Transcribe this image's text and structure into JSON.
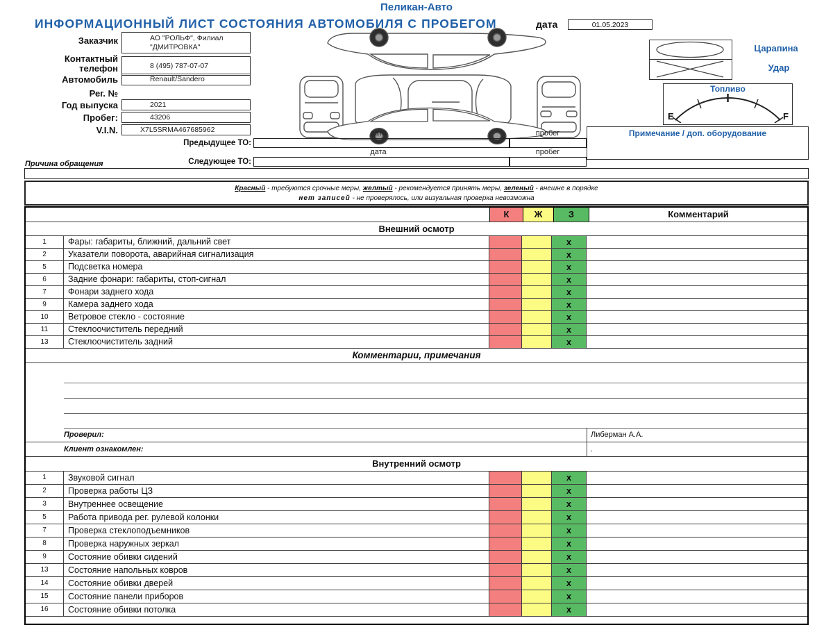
{
  "colors": {
    "accent_blue": "#2060A8",
    "cell_red": "#F47F7F",
    "cell_yellow": "#FCFC84",
    "cell_green": "#58BB64"
  },
  "header": {
    "company": "Пеликан-Авто",
    "title": "ИНФОРМАЦИОННЫЙ ЛИСТ СОСТОЯНИЯ АВТОМОБИЛЯ С ПРОБЕГОМ",
    "date_label": "дата",
    "date_value": "01.05.2023"
  },
  "form": {
    "fields": [
      {
        "label": "Заказчик",
        "value": "АО \"РОЛЬФ\", Филиал \"ДМИТРОВКА\""
      },
      {
        "label": "Контактный телефон",
        "value": "8 (495) 787-07-07"
      },
      {
        "label": "Автомобиль",
        "value": "Renault/Sandero"
      },
      {
        "label": "Рег. №",
        "value": ""
      },
      {
        "label": "Год выпуска",
        "value": "2021"
      },
      {
        "label": "Пробег:",
        "value": "43206"
      },
      {
        "label": "V.I.N.",
        "value": "X7L5SRMA467685962"
      }
    ]
  },
  "service": {
    "rows": [
      {
        "label": "Предыдущее ТО:",
        "date_label": "дата",
        "mileage_label": "пробег",
        "date_value": "",
        "mileage_value": ""
      },
      {
        "label": "Следующее ТО:",
        "date_label": "дата",
        "mileage_label": "пробег",
        "date_value": "",
        "mileage_value": ""
      }
    ]
  },
  "damage": {
    "scratch_label": "Царапина",
    "impact_label": "Удар"
  },
  "fuel": {
    "title": "Топливо",
    "empty": "E",
    "full": "F"
  },
  "notes_title": "Примечание / доп. оборудование",
  "reason_label": "Причина обращения",
  "legend": {
    "line1": [
      {
        "term": "Красный",
        "desc": " - требуются срочные меры,  "
      },
      {
        "term": "желтый",
        "desc": " - рекомендуется принять меры,  "
      },
      {
        "term": "зеленый",
        "desc": " - внешне в порядке"
      }
    ],
    "line2_term": "нет записей",
    "line2_desc": " - не проверялось, или визуальная проверка невозможна"
  },
  "inspection": {
    "header": {
      "red": "К",
      "yellow": "Ж",
      "green": "З",
      "comment": "Комментарий"
    },
    "sections": [
      {
        "title": "Внешний осмотр",
        "rows": [
          {
            "num": "1",
            "item": "Фары: габариты, ближний, дальний свет",
            "mark": "x",
            "comment": ""
          },
          {
            "num": "2",
            "item": "Указатели поворота, аварийная сигнализация",
            "mark": "x",
            "comment": ""
          },
          {
            "num": "5",
            "item": "Подсветка номера",
            "mark": "x",
            "comment": ""
          },
          {
            "num": "6",
            "item": "Задние фонари: габариты, стоп-сигнал",
            "mark": "x",
            "comment": ""
          },
          {
            "num": "7",
            "item": "Фонари заднего хода",
            "mark": "x",
            "comment": ""
          },
          {
            "num": "9",
            "item": "Камера заднего хода",
            "mark": "x",
            "comment": ""
          },
          {
            "num": "10",
            "item": "Ветровое стекло - состояние",
            "mark": "x",
            "comment": ""
          },
          {
            "num": "11",
            "item": "Стеклоочиститель передний",
            "mark": "x",
            "comment": ""
          },
          {
            "num": "13",
            "item": "Стеклоочиститель задний",
            "mark": "x",
            "comment": ""
          }
        ]
      },
      {
        "title": "Внутренний осмотр",
        "rows": [
          {
            "num": "1",
            "item": "Звуковой сигнал",
            "mark": "x",
            "comment": ""
          },
          {
            "num": "2",
            "item": "Проверка работы ЦЗ",
            "mark": "x",
            "comment": ""
          },
          {
            "num": "3",
            "item": "Внутреннее освещение",
            "mark": "x",
            "comment": ""
          },
          {
            "num": "5",
            "item": "Работа привода рег. рулевой колонки",
            "mark": "x",
            "comment": ""
          },
          {
            "num": "7",
            "item": "Проверка стеклоподъемников",
            "mark": "x",
            "comment": ""
          },
          {
            "num": "8",
            "item": "Проверка наружных зеркал",
            "mark": "x",
            "comment": ""
          },
          {
            "num": "9",
            "item": "Состояние обивки сидений",
            "mark": "x",
            "comment": ""
          },
          {
            "num": "13",
            "item": "Состояние напольных ковров",
            "mark": "x",
            "comment": ""
          },
          {
            "num": "14",
            "item": "Состояние обивки дверей",
            "mark": "x",
            "comment": ""
          },
          {
            "num": "15",
            "item": "Состояние панели приборов",
            "mark": "x",
            "comment": ""
          },
          {
            "num": "16",
            "item": "Состояние обивки потолка",
            "mark": "x",
            "comment": ""
          }
        ]
      }
    ]
  },
  "comments": {
    "title": "Комментарии, примечания",
    "blank_lines": 4,
    "checked_by_label": "Проверил:",
    "checked_by_value": "Либерман А.А.",
    "client_label": "Клиент ознакомлен:",
    "client_value": "."
  }
}
